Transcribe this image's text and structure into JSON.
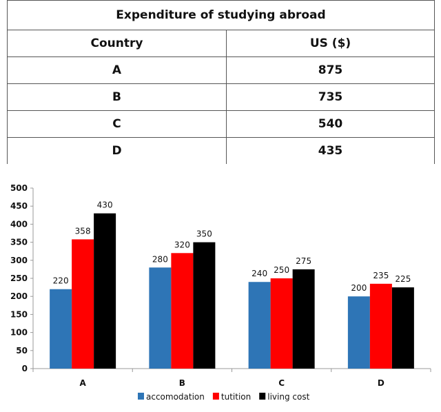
{
  "table": {
    "title": "Expenditure of studying abroad",
    "headers": [
      "Country",
      "US ($)"
    ],
    "rows": [
      [
        "A",
        "875"
      ],
      [
        "B",
        "735"
      ],
      [
        "C",
        "540"
      ],
      [
        "D",
        "435"
      ]
    ]
  },
  "chart_data": {
    "type": "bar",
    "categories": [
      "A",
      "B",
      "C",
      "D"
    ],
    "series": [
      {
        "name": "accomodation",
        "color": "#2e75b6",
        "values": [
          220,
          280,
          240,
          200
        ]
      },
      {
        "name": "tutition",
        "color": "#ff0000",
        "values": [
          358,
          320,
          250,
          235
        ]
      },
      {
        "name": "living cost",
        "color": "#000000",
        "values": [
          430,
          350,
          275,
          225
        ]
      }
    ],
    "ylim": [
      0,
      500
    ],
    "yticks": [
      0,
      50,
      100,
      150,
      200,
      250,
      300,
      350,
      400,
      450,
      500
    ],
    "grid": false,
    "legend": "bottom"
  }
}
